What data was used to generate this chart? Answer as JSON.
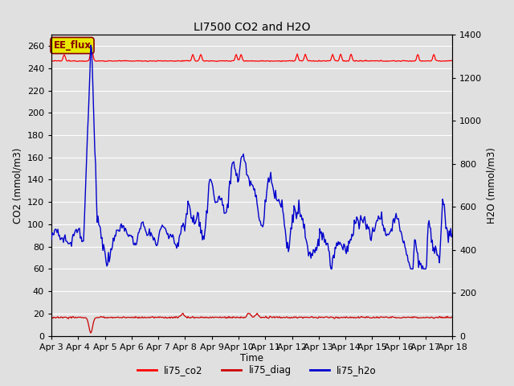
{
  "title": "LI7500 CO2 and H2O",
  "xlabel": "Time",
  "ylabel_left": "CO2 (mmol/m3)",
  "ylabel_right": "H2O (mmol/m3)",
  "annotation": "EE_flux",
  "ylim_left": [
    0,
    270
  ],
  "ylim_right": [
    0,
    1400
  ],
  "yticks_left": [
    0,
    20,
    40,
    60,
    80,
    100,
    120,
    140,
    160,
    180,
    200,
    220,
    240,
    260
  ],
  "yticks_right": [
    0,
    200,
    400,
    600,
    800,
    1000,
    1200,
    1400
  ],
  "xtick_labels": [
    "Apr 3",
    "Apr 4",
    "Apr 5",
    "Apr 6",
    "Apr 7",
    "Apr 8",
    "Apr 9",
    "Apr 10",
    "Apr 11",
    "Apr 12",
    "Apr 13",
    "Apr 14",
    "Apr 15",
    "Apr 16",
    "Apr 17",
    "Apr 18"
  ],
  "background_color": "#e0e0e0",
  "plot_background": "#e0e0e0",
  "grid_color": "#ffffff",
  "legend_entries": [
    "li75_co2",
    "li75_diag",
    "li75_h2o"
  ],
  "legend_colors": [
    "#ff0000",
    "#cc0000",
    "#0000cc"
  ],
  "co2_color": "#ff0000",
  "diag_color": "#cc0000",
  "h2o_color": "#0000cc",
  "annotation_bg": "#e8e800",
  "annotation_fg": "#880000",
  "n_days": 15,
  "n_points": 500
}
